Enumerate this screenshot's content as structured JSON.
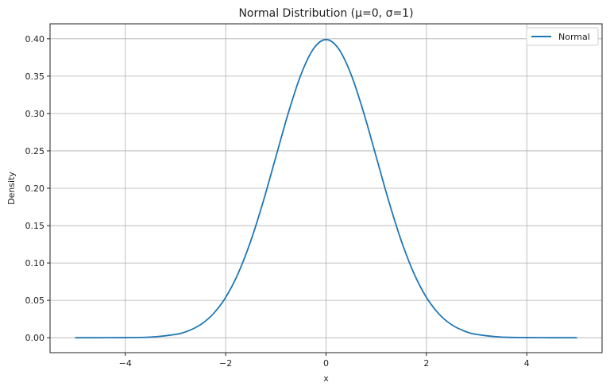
{
  "chart_data": {
    "type": "line",
    "title": "Normal Distribution (μ=0, σ=1)",
    "xlabel": "x",
    "ylabel": "Density",
    "xlim": [
      -5.5,
      5.5
    ],
    "ylim": [
      -0.02,
      0.42
    ],
    "x_ticks": [
      -4,
      -2,
      0,
      2,
      4
    ],
    "x_tick_labels": [
      "−4",
      "−2",
      "0",
      "2",
      "4"
    ],
    "y_ticks": [
      0.0,
      0.05,
      0.1,
      0.15,
      0.2,
      0.25,
      0.3,
      0.35,
      0.4
    ],
    "y_tick_labels": [
      "0.00",
      "0.05",
      "0.10",
      "0.15",
      "0.20",
      "0.25",
      "0.30",
      "0.35",
      "0.40"
    ],
    "grid": true,
    "legend_position": "top-right",
    "series": [
      {
        "name": "Normal",
        "color": "#1f77b4",
        "x": [
          -5.0,
          -4.5,
          -4.0,
          -3.5,
          -3.0,
          -2.75,
          -2.5,
          -2.25,
          -2.0,
          -1.75,
          -1.5,
          -1.25,
          -1.0,
          -0.75,
          -0.5,
          -0.25,
          0.0,
          0.25,
          0.5,
          0.75,
          1.0,
          1.25,
          1.5,
          1.75,
          2.0,
          2.25,
          2.5,
          2.75,
          3.0,
          3.5,
          4.0,
          4.5,
          5.0
        ],
        "y": [
          1.5e-06,
          1.6e-05,
          0.000134,
          0.000873,
          0.004432,
          0.009094,
          0.017528,
          0.03174,
          0.053991,
          0.086277,
          0.129518,
          0.182649,
          0.241971,
          0.301137,
          0.352065,
          0.386668,
          0.398942,
          0.386668,
          0.352065,
          0.301137,
          0.241971,
          0.182649,
          0.129518,
          0.086277,
          0.053991,
          0.03174,
          0.017528,
          0.009094,
          0.004432,
          0.000873,
          0.000134,
          1.6e-05,
          1.5e-06
        ]
      }
    ]
  }
}
